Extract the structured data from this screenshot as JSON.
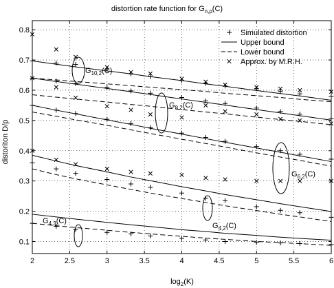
{
  "chart_data": {
    "type": "line",
    "title_main": "distortion rate function for G",
    "title_sub": "n,p",
    "title_end": "(C)",
    "xlabel_main": "log",
    "xlabel_sub": "2",
    "xlabel_end": "(K)",
    "ylabel": "distoriton D/p",
    "xlim": [
      2,
      6
    ],
    "ylim": [
      0.06,
      0.83
    ],
    "xticks": [
      2,
      2.5,
      3,
      3.5,
      4,
      4.5,
      5,
      5.5,
      6
    ],
    "xtick_labels": [
      "2",
      "2.5",
      "3",
      "3.5",
      "4",
      "4.5",
      "5",
      "5.5",
      "6"
    ],
    "yticks": [
      0.1,
      0.2,
      0.3,
      0.4,
      0.5,
      0.6,
      0.7,
      0.8
    ],
    "ytick_labels": [
      "0.1",
      "0.2",
      "0.3",
      "0.4",
      "0.5",
      "0.6",
      "0.7",
      "0.8"
    ],
    "grid": true,
    "legend_position": "top-right",
    "legend": [
      {
        "label": "Simulated distortion",
        "style": "plus"
      },
      {
        "label": "Upper bound",
        "style": "solid"
      },
      {
        "label": "Lower bound",
        "style": "dashed"
      },
      {
        "label": "Approx. by M.R.H.",
        "style": "cross"
      }
    ],
    "marker_x": [
      2,
      2.32,
      2.58,
      3,
      3.32,
      3.58,
      4,
      4.32,
      4.58,
      5,
      5.32,
      5.58,
      6
    ],
    "groups": [
      {
        "label_main": "G",
        "label_sub": "10,2",
        "label_end": "(C)",
        "upper": [
          0.697,
          0.686,
          0.677,
          0.664,
          0.654,
          0.645,
          0.632,
          0.621,
          0.613,
          0.599,
          0.589,
          0.581,
          0.567
        ],
        "lower": [
          0.64,
          0.634,
          0.629,
          0.621,
          0.615,
          0.61,
          0.602,
          0.596,
          0.59,
          0.582,
          0.576,
          0.57,
          0.562
        ],
        "simulated": [
          0.697,
          0.69,
          0.685,
          0.67,
          0.654,
          0.645,
          0.632,
          0.623,
          0.614,
          0.605,
          0.596,
          0.588,
          0.58
        ],
        "approx": [
          0.785,
          0.735,
          0.71,
          0.676,
          0.66,
          0.655,
          0.638,
          0.628,
          0.618,
          0.61,
          0.605,
          0.6,
          0.595
        ]
      },
      {
        "label_main": "G",
        "label_sub": "8,2",
        "label_end": "(C)",
        "upper": [
          0.64,
          0.629,
          0.62,
          0.606,
          0.595,
          0.586,
          0.571,
          0.56,
          0.551,
          0.536,
          0.525,
          0.516,
          0.501
        ],
        "lower": [
          0.585,
          0.577,
          0.571,
          0.561,
          0.553,
          0.547,
          0.536,
          0.528,
          0.522,
          0.511,
          0.503,
          0.497,
          0.486
        ],
        "simulated": [
          0.64,
          0.63,
          0.622,
          0.61,
          0.598,
          0.59,
          0.576,
          0.565,
          0.556,
          0.541,
          0.53,
          0.521,
          0.506
        ],
        "approx": [
          0.64,
          0.61,
          0.575,
          0.547,
          0.535,
          0.52,
          0.51,
          0.55,
          0.53,
          0.52,
          0.505,
          0.5,
          0.49
        ]
      },
      {
        "label_main": "G",
        "label_sub": "6,2",
        "label_end": "(C)",
        "upper": [
          0.55,
          0.534,
          0.522,
          0.502,
          0.487,
          0.474,
          0.455,
          0.44,
          0.428,
          0.409,
          0.395,
          0.383,
          0.364
        ],
        "lower": [
          0.528,
          0.514,
          0.502,
          0.484,
          0.469,
          0.457,
          0.438,
          0.424,
          0.412,
          0.393,
          0.379,
          0.368,
          0.349
        ],
        "simulated": [
          0.55,
          0.534,
          0.523,
          0.504,
          0.49,
          0.476,
          0.458,
          0.444,
          0.431,
          0.414,
          0.4,
          0.388,
          0.372
        ],
        "approx": [
          0.4,
          0.37,
          0.355,
          0.34,
          0.33,
          0.325,
          0.32,
          0.31,
          0.305,
          0.3,
          0.3,
          0.3,
          0.3
        ]
      },
      {
        "label_main": "G",
        "label_sub": "4,2",
        "label_end": "(C)",
        "upper": [
          0.385,
          0.366,
          0.351,
          0.33,
          0.313,
          0.301,
          0.281,
          0.267,
          0.255,
          0.238,
          0.225,
          0.215,
          0.199
        ],
        "lower": [
          0.34,
          0.321,
          0.307,
          0.287,
          0.272,
          0.26,
          0.242,
          0.229,
          0.218,
          0.202,
          0.19,
          0.181,
          0.166
        ],
        "simulated": [
          0.36,
          0.34,
          0.325,
          0.305,
          0.29,
          0.279,
          0.26,
          0.243,
          0.235,
          0.215,
          0.203,
          0.195,
          0.18
        ]
      },
      {
        "label_main": "G",
        "label_sub": "4,3",
        "label_end": "(C)",
        "upper": [
          0.19,
          0.181,
          0.174,
          0.163,
          0.155,
          0.149,
          0.139,
          0.133,
          0.127,
          0.12,
          0.114,
          0.11,
          0.104
        ],
        "lower": [
          0.16,
          0.152,
          0.146,
          0.137,
          0.13,
          0.125,
          0.117,
          0.111,
          0.107,
          0.1,
          0.096,
          0.093,
          0.087
        ],
        "simulated": [
          0.16,
          0.15,
          0.14,
          0.13,
          0.125,
          0.118,
          0.11,
          0.105,
          0.1,
          0.097,
          0.095,
          0.093,
          0.09
        ]
      }
    ]
  }
}
